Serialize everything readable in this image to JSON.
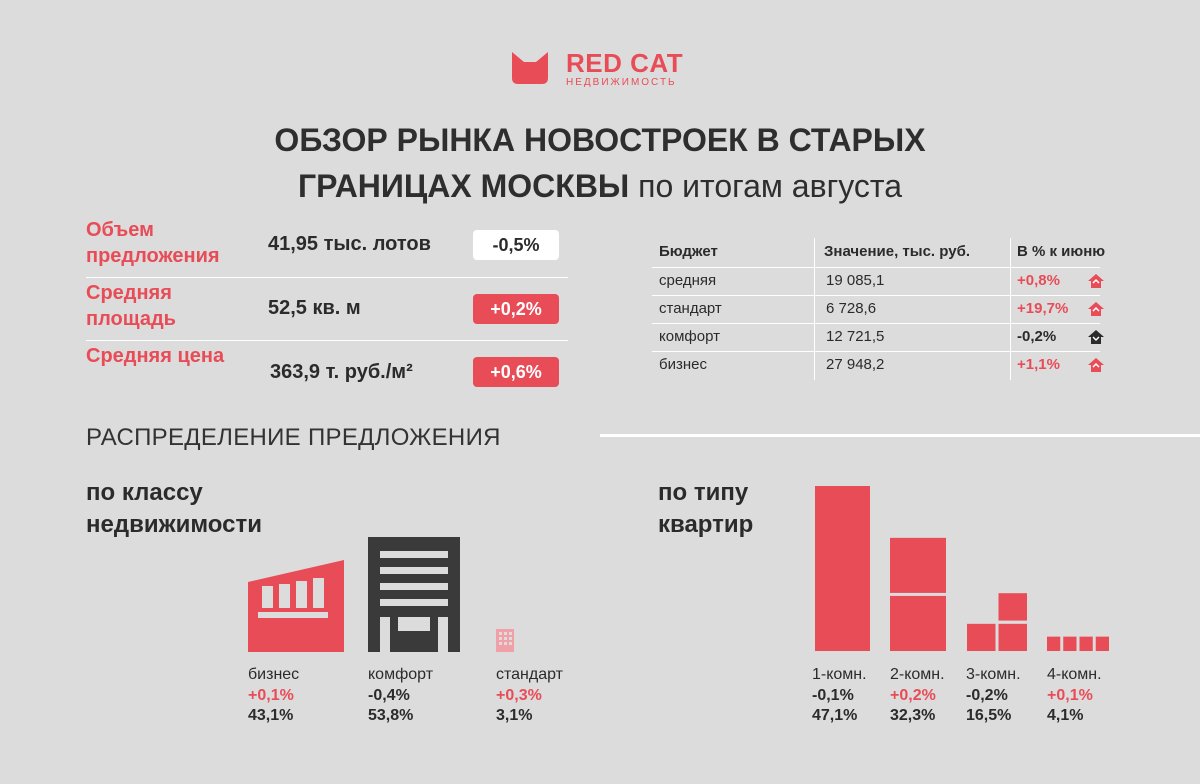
{
  "brand": {
    "name": "RED CAT",
    "sub": "НЕДВИЖИМОСТЬ",
    "accent": "#e84c57"
  },
  "title": {
    "line1": "ОБЗОР РЫНКА НОВОСТРОЕК В СТАРЫХ",
    "line2_bold": "ГРАНИЦАХ МОСКВЫ",
    "line2_thin": " по итогам августа"
  },
  "metrics": [
    {
      "label": "Объем предложения",
      "value": "41,95 тыс. лотов",
      "change": "-0,5%"
    },
    {
      "label": "Средняя площадь",
      "value": "52,5 кв. м",
      "change": "+0,2%"
    },
    {
      "label": "Средняя цена",
      "value": "363,9 т. руб./м²",
      "change": "+0,6%"
    }
  ],
  "budget_table": {
    "headers": [
      "Бюджет",
      "Значение, тыс. руб.",
      "В % к июню"
    ],
    "rows": [
      {
        "segment": "средняя",
        "value": "19 085,1",
        "change": "+0,8%"
      },
      {
        "segment": "стандарт",
        "value": "6 728,6",
        "change": "+19,7%"
      },
      {
        "segment": "комфорт",
        "value": "12 721,5",
        "change": "-0,2%"
      },
      {
        "segment": "бизнес",
        "value": "27 948,2",
        "change": "+1,1%"
      }
    ]
  },
  "section_title": "РАСПРЕДЕЛЕНИЕ ПРЕДЛОЖЕНИЯ",
  "by_class": {
    "title_line1": "по классу",
    "title_line2": "недвижимости",
    "items": [
      {
        "name": "бизнес",
        "change": "+0,1%",
        "share": "43,1%"
      },
      {
        "name": "комфорт",
        "change": "-0,4%",
        "share": "53,8%"
      },
      {
        "name": "стандарт",
        "change": "+0,3%",
        "share": "3,1%"
      }
    ]
  },
  "by_type": {
    "title_line1": "по типу",
    "title_line2": "квартир",
    "items": [
      {
        "name": "1-комн.",
        "change": "-0,1%",
        "share": "47,1%"
      },
      {
        "name": "2-комн.",
        "change": "+0,2%",
        "share": "32,3%"
      },
      {
        "name": "3-комн.",
        "change": "-0,2%",
        "share": "16,5%"
      },
      {
        "name": "4-комн.",
        "change": "+0,1%",
        "share": "4,1%"
      }
    ]
  },
  "chart_data": [
    {
      "type": "bar",
      "categories": [
        "бизнес",
        "комфорт",
        "стандарт"
      ],
      "values": [
        43.1,
        53.8,
        3.1
      ],
      "changes": [
        "+0,1%",
        "-0,4%",
        "+0,3%"
      ]
    },
    {
      "type": "bar",
      "categories": [
        "1-комн.",
        "2-комн.",
        "3-комн.",
        "4-комн."
      ],
      "values": [
        47.1,
        32.3,
        16.5,
        4.1
      ],
      "changes": [
        "-0,1%",
        "+0,2%",
        "-0,2%",
        "+0,1%"
      ]
    }
  ]
}
